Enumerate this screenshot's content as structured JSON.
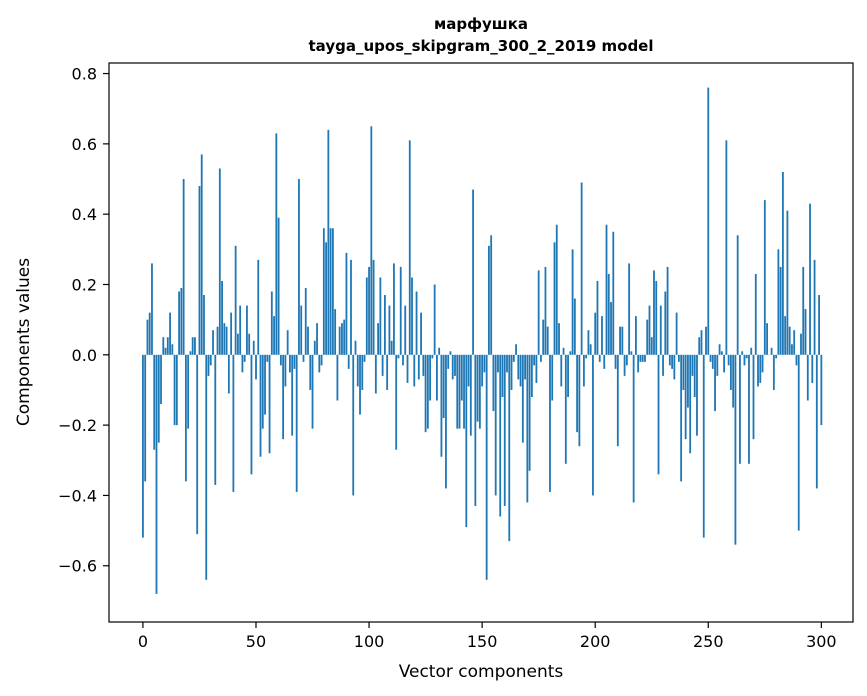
{
  "chart_data": {
    "type": "bar",
    "title_line1": "марфушка",
    "title_line2": "tayga_upos_skipgram_300_2_2019 model",
    "xlabel": "Vector components",
    "ylabel": "Components values",
    "xlim": [
      -15,
      314
    ],
    "ylim": [
      -0.76,
      0.83
    ],
    "x_ticks": [
      0,
      50,
      100,
      150,
      200,
      250,
      300
    ],
    "x_tick_labels": [
      "0",
      "50",
      "100",
      "150",
      "200",
      "250",
      "300"
    ],
    "y_ticks": [
      -0.6,
      -0.4,
      -0.2,
      0.0,
      0.2,
      0.4,
      0.6,
      0.8
    ],
    "y_tick_labels": [
      "−0.6",
      "−0.4",
      "−0.2",
      "0.0",
      "0.2",
      "0.4",
      "0.6",
      "0.8"
    ],
    "color": "#1f77b4",
    "values": [
      -0.52,
      -0.36,
      0.1,
      0.12,
      0.26,
      -0.27,
      -0.68,
      -0.25,
      -0.14,
      0.05,
      0.02,
      0.05,
      0.12,
      0.03,
      -0.2,
      -0.2,
      0.18,
      0.19,
      0.5,
      -0.36,
      -0.21,
      0.01,
      0.05,
      0.05,
      -0.51,
      0.48,
      0.57,
      0.17,
      -0.64,
      -0.06,
      -0.03,
      0.07,
      -0.37,
      0.08,
      0.53,
      0.21,
      0.09,
      0.08,
      -0.11,
      0.12,
      -0.39,
      0.31,
      0.06,
      0.14,
      -0.05,
      -0.02,
      0.14,
      0.06,
      -0.34,
      0.04,
      -0.07,
      0.27,
      -0.29,
      -0.21,
      -0.17,
      -0.02,
      -0.28,
      0.18,
      0.11,
      0.63,
      0.39,
      -0.03,
      -0.24,
      -0.09,
      0.07,
      -0.05,
      -0.23,
      -0.04,
      -0.39,
      0.5,
      0.14,
      -0.02,
      0.19,
      0.08,
      -0.1,
      -0.21,
      0.04,
      0.09,
      -0.05,
      -0.03,
      0.36,
      0.32,
      0.64,
      0.36,
      0.36,
      0.13,
      -0.13,
      0.08,
      0.09,
      0.1,
      0.29,
      -0.04,
      0.27,
      -0.4,
      0.04,
      -0.09,
      -0.17,
      -0.1,
      -0.02,
      0.22,
      0.25,
      0.65,
      0.27,
      -0.11,
      0.09,
      0.22,
      -0.06,
      0.17,
      -0.1,
      0.14,
      0.04,
      0.26,
      -0.27,
      -0.01,
      0.25,
      -0.03,
      0.14,
      -0.08,
      0.61,
      0.22,
      -0.09,
      0.18,
      -0.07,
      0.12,
      -0.06,
      -0.22,
      -0.21,
      -0.13,
      -0.01,
      0.2,
      -0.13,
      0.02,
      -0.29,
      -0.18,
      -0.38,
      -0.04,
      0.01,
      -0.07,
      -0.06,
      -0.21,
      -0.21,
      -0.13,
      -0.21,
      -0.49,
      -0.09,
      -0.23,
      0.47,
      -0.43,
      -0.19,
      -0.21,
      -0.09,
      -0.05,
      -0.64,
      0.31,
      0.34,
      -0.16,
      -0.4,
      -0.05,
      -0.46,
      -0.12,
      -0.43,
      -0.05,
      -0.53,
      -0.1,
      -0.02,
      0.03,
      -0.07,
      -0.09,
      -0.25,
      -0.07,
      -0.42,
      -0.33,
      -0.12,
      -0.03,
      -0.08,
      0.24,
      -0.02,
      0.1,
      0.25,
      0.08,
      -0.39,
      -0.13,
      0.32,
      0.37,
      0.09,
      -0.09,
      0.02,
      -0.31,
      -0.12,
      0.01,
      0.3,
      0.16,
      -0.22,
      -0.26,
      0.49,
      -0.09,
      -0.01,
      0.07,
      0.03,
      -0.4,
      0.12,
      0.21,
      -0.02,
      0.11,
      -0.04,
      0.37,
      0.23,
      0.15,
      0.35,
      -0.04,
      -0.26,
      0.08,
      0.08,
      -0.06,
      -0.03,
      0.26,
      0.01,
      -0.42,
      0.11,
      -0.05,
      -0.02,
      -0.02,
      -0.02,
      0.1,
      0.14,
      0.05,
      0.24,
      0.21,
      -0.34,
      0.14,
      -0.06,
      0.18,
      0.25,
      -0.03,
      -0.04,
      -0.07,
      0.12,
      -0.02,
      -0.36,
      -0.1,
      -0.24,
      -0.15,
      -0.28,
      -0.06,
      -0.12,
      -0.23,
      0.05,
      0.07,
      -0.52,
      0.08,
      0.76,
      -0.02,
      -0.04,
      -0.16,
      -0.06,
      0.03,
      0.01,
      -0.05,
      0.61,
      -0.03,
      -0.1,
      -0.15,
      -0.54,
      0.34,
      -0.31,
      0.01,
      -0.03,
      -0.01,
      -0.31,
      0.02,
      -0.24,
      0.23,
      -0.09,
      -0.08,
      -0.05,
      0.44,
      0.09,
      0.0,
      0.02,
      -0.1,
      -0.01,
      0.3,
      0.25,
      0.52,
      0.11,
      0.41,
      0.08,
      0.03,
      0.07,
      -0.03,
      -0.5,
      0.06,
      0.25,
      0.13,
      -0.13,
      0.43,
      -0.08,
      0.27,
      -0.38,
      0.17,
      -0.2
    ]
  }
}
